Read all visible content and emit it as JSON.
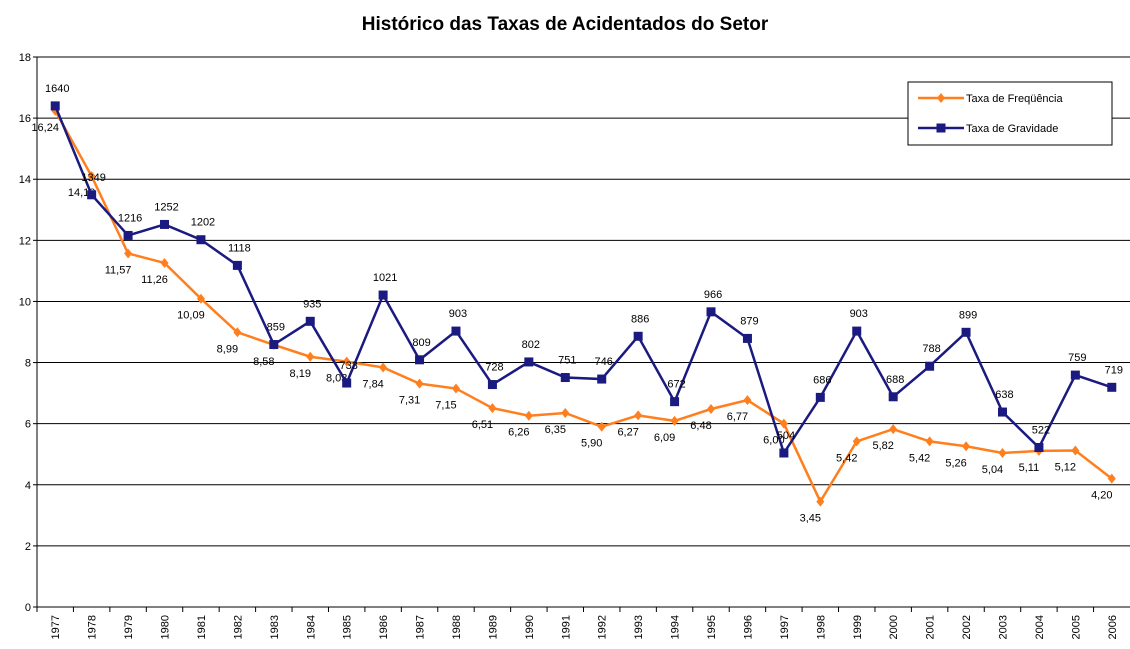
{
  "chart_data": {
    "type": "line",
    "title": "Histórico das Taxas de Acidentados do Setor",
    "categories": [
      "1977",
      "1978",
      "1979",
      "1980",
      "1981",
      "1982",
      "1983",
      "1984",
      "1985",
      "1986",
      "1987",
      "1988",
      "1989",
      "1990",
      "1991",
      "1992",
      "1993",
      "1994",
      "1995",
      "1996",
      "1997",
      "1998",
      "1999",
      "2000",
      "2001",
      "2002",
      "2003",
      "2004",
      "2005",
      "2006"
    ],
    "series": [
      {
        "name": "Taxa de Freqüência",
        "color": "#ff7f1e",
        "values": [
          16.24,
          14.1,
          11.57,
          11.26,
          10.09,
          8.99,
          8.58,
          8.19,
          8.03,
          7.84,
          7.31,
          7.15,
          6.51,
          6.26,
          6.35,
          5.9,
          6.27,
          6.09,
          6.48,
          6.77,
          6.0,
          3.45,
          5.42,
          5.82,
          5.42,
          5.26,
          5.04,
          5.11,
          5.12,
          4.2
        ],
        "value_labels": [
          "16,24",
          "14,10",
          "11,57",
          "11,26",
          "10,09",
          "8,99",
          "8,58",
          "8,19",
          "8,03",
          "7,84",
          "7,31",
          "7,15",
          "6,51",
          "6,26",
          "6,35",
          "5,90",
          "6,27",
          "6,09",
          "6,48",
          "6,77",
          "6,00",
          "3,45",
          "5,42",
          "5,82",
          "5,42",
          "5,26",
          "5,04",
          "5,11",
          "5,12",
          "4,20"
        ]
      },
      {
        "name": "Taxa de Gravidade",
        "color": "#1a1a80",
        "axis": "y2",
        "values": [
          1640,
          1349,
          1216,
          1252,
          1202,
          1118,
          859,
          935,
          733,
          1021,
          809,
          903,
          728,
          802,
          751,
          746,
          886,
          672,
          966,
          879,
          504,
          686,
          903,
          688,
          788,
          899,
          638,
          522,
          759,
          719
        ]
      }
    ],
    "ylim": [
      0,
      18
    ],
    "yticks": [
      0,
      2,
      4,
      6,
      8,
      10,
      12,
      14,
      16,
      18
    ],
    "y2lim": [
      0,
      1800
    ],
    "grid": true,
    "legend": "upper right"
  }
}
